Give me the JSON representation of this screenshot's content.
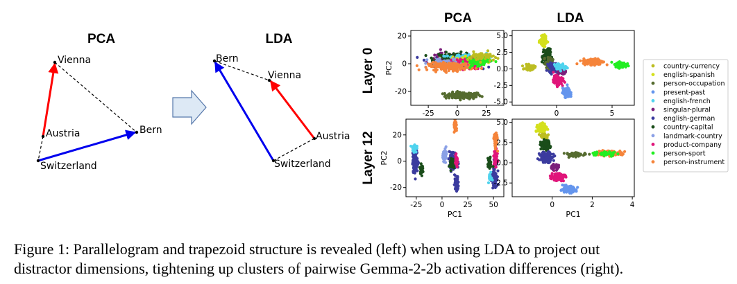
{
  "caption": {
    "line1": "Figure 1: Parallelogram and trapezoid structure is revealed (left) when using LDA to project out",
    "line2": "distractor dimensions, tightening up clusters of pairwise Gemma-2-2b activation differences (right)."
  },
  "diagrams": {
    "pca": {
      "title": "PCA",
      "nodes": [
        {
          "id": "vienna",
          "label": "Vienna"
        },
        {
          "id": "austria",
          "label": "Austria"
        },
        {
          "id": "bern",
          "label": "Bern"
        },
        {
          "id": "switzerland",
          "label": "Switzerland"
        }
      ],
      "edges": [
        {
          "from": "austria",
          "to": "vienna",
          "style": "arrow",
          "color": "#ff0000"
        },
        {
          "from": "switzerland",
          "to": "bern",
          "style": "arrow",
          "color": "#0000ee"
        },
        {
          "from": "vienna",
          "to": "bern",
          "style": "dashed",
          "color": "#000000"
        },
        {
          "from": "austria",
          "to": "switzerland",
          "style": "dashed",
          "color": "#000000"
        }
      ]
    },
    "lda": {
      "title": "LDA",
      "nodes": [
        {
          "id": "bern",
          "label": "Bern"
        },
        {
          "id": "vienna",
          "label": "Vienna"
        },
        {
          "id": "austria",
          "label": "Austria"
        },
        {
          "id": "switzerland",
          "label": "Switzerland"
        }
      ],
      "edges": [
        {
          "from": "austria",
          "to": "vienna",
          "style": "arrow",
          "color": "#ff0000"
        },
        {
          "from": "switzerland",
          "to": "bern",
          "style": "arrow",
          "color": "#0000ee"
        },
        {
          "from": "bern",
          "to": "vienna",
          "style": "dashed",
          "color": "#000000"
        },
        {
          "from": "austria",
          "to": "switzerland",
          "style": "dashed",
          "color": "#000000"
        }
      ]
    },
    "arrow_color": "#dde9f5",
    "arrow_stroke": "#5577aa"
  },
  "chart_data": {
    "type": "scatter",
    "column_titles": [
      "PCA",
      "LDA"
    ],
    "row_titles": [
      "Layer 0",
      "Layer 12"
    ],
    "legend_position": "right",
    "series": [
      {
        "name": "country-currency",
        "color": "#bcbd22"
      },
      {
        "name": "english-spanish",
        "color": "#d4e01c"
      },
      {
        "name": "person-occupation",
        "color": "#556b2f"
      },
      {
        "name": "present-past",
        "color": "#6495ed"
      },
      {
        "name": "english-french",
        "color": "#4fd3ee"
      },
      {
        "name": "singular-plural",
        "color": "#7b1f7b"
      },
      {
        "name": "english-german",
        "color": "#3b3b9e"
      },
      {
        "name": "country-capital",
        "color": "#1a4d1a"
      },
      {
        "name": "landmark-country",
        "color": "#8aa0e6"
      },
      {
        "name": "product-company",
        "color": "#e0157a"
      },
      {
        "name": "person-sport",
        "color": "#22ee22"
      },
      {
        "name": "person-instrument",
        "color": "#f5843a"
      }
    ],
    "panels": [
      {
        "id": "pca-layer0",
        "ylabel": "PC2",
        "xlabel": "",
        "xlim": [
          -40,
          40
        ],
        "ylim": [
          -30,
          24
        ],
        "xticks": [
          "-25",
          "0",
          "25"
        ],
        "xtick_values": [
          -25,
          0,
          25
        ],
        "yticks": [
          "20",
          "0",
          "-20"
        ],
        "ytick_values": [
          20,
          0,
          -20
        ],
        "clusters": [
          {
            "series": "person-occupation",
            "cx": 5,
            "cy": -23,
            "sx": 14,
            "sy": 2.2,
            "n": 140
          },
          {
            "series": "english-german",
            "cx": 0,
            "cy": 2,
            "sx": 18,
            "sy": 4,
            "n": 220
          },
          {
            "series": "singular-plural",
            "cx": -12,
            "cy": 3,
            "sx": 10,
            "sy": 4,
            "n": 80
          },
          {
            "series": "country-capital",
            "cx": -2,
            "cy": 4,
            "sx": 16,
            "sy": 3.5,
            "n": 120
          },
          {
            "series": "english-french",
            "cx": 5,
            "cy": 3,
            "sx": 18,
            "sy": 4,
            "n": 80
          },
          {
            "series": "english-spanish",
            "cx": 8,
            "cy": 2,
            "sx": 16,
            "sy": 3.5,
            "n": 80
          },
          {
            "series": "product-company",
            "cx": 8,
            "cy": 0,
            "sx": 12,
            "sy": 3.5,
            "n": 140
          },
          {
            "series": "landmark-country",
            "cx": -10,
            "cy": 0,
            "sx": 14,
            "sy": 3.5,
            "n": 60
          },
          {
            "series": "person-instrument",
            "cx": -5,
            "cy": -2,
            "sx": 18,
            "sy": 2.5,
            "n": 180
          },
          {
            "series": "person-sport",
            "cx": 18,
            "cy": 2,
            "sx": 10,
            "sy": 3,
            "n": 80
          },
          {
            "series": "country-currency",
            "cx": 20,
            "cy": 5,
            "sx": 10,
            "sy": 3,
            "n": 50
          }
        ]
      },
      {
        "id": "lda-layer0",
        "ylabel": "",
        "xlabel": "",
        "xlim": [
          -4,
          7
        ],
        "ylim": [
          -5.5,
          5.8
        ],
        "xticks": [
          "0",
          "5"
        ],
        "xtick_values": [
          0,
          5
        ],
        "yticks": [
          "5.0",
          "2.5",
          "0.0",
          "-2.5",
          "-5.0"
        ],
        "ytick_values": [
          5,
          2.5,
          0,
          -2.5,
          -5
        ],
        "clusters": [
          {
            "series": "english-spanish",
            "cx": -1.2,
            "cy": 4.2,
            "sx": 0.25,
            "sy": 0.6,
            "n": 130
          },
          {
            "series": "country-currency",
            "cx": -2.4,
            "cy": 0.2,
            "sx": 0.4,
            "sy": 0.35,
            "n": 60
          },
          {
            "series": "country-capital",
            "cx": -0.9,
            "cy": 1.9,
            "sx": 0.3,
            "sy": 1.0,
            "n": 140
          },
          {
            "series": "person-occupation",
            "cx": -0.6,
            "cy": 0.8,
            "sx": 0.35,
            "sy": 0.8,
            "n": 70
          },
          {
            "series": "person-instrument",
            "cx": 3.3,
            "cy": 1.1,
            "sx": 0.8,
            "sy": 0.4,
            "n": 160
          },
          {
            "series": "person-sport",
            "cx": 5.8,
            "cy": 0.6,
            "sx": 0.45,
            "sy": 0.35,
            "n": 110
          },
          {
            "series": "english-german",
            "cx": -0.2,
            "cy": 0.2,
            "sx": 0.45,
            "sy": 0.6,
            "n": 110
          },
          {
            "series": "singular-plural",
            "cx": 0.5,
            "cy": -0.4,
            "sx": 0.3,
            "sy": 0.4,
            "n": 60
          },
          {
            "series": "english-french",
            "cx": 0.3,
            "cy": 0.3,
            "sx": 0.5,
            "sy": 0.5,
            "n": 40
          },
          {
            "series": "product-company",
            "cx": 0.1,
            "cy": -1.7,
            "sx": 0.35,
            "sy": 0.6,
            "n": 140
          },
          {
            "series": "present-past",
            "cx": 0.9,
            "cy": -3.6,
            "sx": 0.3,
            "sy": 0.6,
            "n": 110
          }
        ]
      },
      {
        "id": "pca-layer12",
        "ylabel": "PC2",
        "xlabel": "PC1",
        "xlim": [
          -35,
          60
        ],
        "ylim": [
          -27,
          32
        ],
        "xticks": [
          "-25",
          "0",
          "25",
          "50"
        ],
        "xtick_values": [
          -25,
          0,
          25,
          50
        ],
        "yticks": [
          "20",
          "0",
          "-20"
        ],
        "ytick_values": [
          20,
          0,
          -20
        ],
        "clusters": [
          {
            "series": "english-german",
            "cx": -26,
            "cy": 0,
            "sx": 2.2,
            "sy": 8,
            "n": 180
          },
          {
            "series": "country-capital",
            "cx": -20,
            "cy": -6,
            "sx": 1.2,
            "sy": 3,
            "n": 30
          },
          {
            "series": "english-french",
            "cx": -27,
            "cy": 10,
            "sx": 2,
            "sy": 3,
            "n": 30
          },
          {
            "series": "english-german",
            "cx": 11,
            "cy": 0,
            "sx": 3.5,
            "sy": 6,
            "n": 130
          },
          {
            "series": "country-capital",
            "cx": 10,
            "cy": -2,
            "sx": 2,
            "sy": 4,
            "n": 50
          },
          {
            "series": "landmark-country",
            "cx": 3,
            "cy": 5,
            "sx": 2,
            "sy": 4,
            "n": 40
          },
          {
            "series": "person-instrument",
            "cx": 13,
            "cy": 26,
            "sx": 1.3,
            "sy": 4,
            "n": 60
          },
          {
            "series": "product-company",
            "cx": 14,
            "cy": 0,
            "sx": 1.3,
            "sy": 4,
            "n": 40
          },
          {
            "series": "english-german",
            "cx": 14,
            "cy": -17,
            "sx": 1.5,
            "sy": 5,
            "n": 60
          },
          {
            "series": "english-german",
            "cx": 51,
            "cy": -10,
            "sx": 2,
            "sy": 8,
            "n": 100
          },
          {
            "series": "product-company",
            "cx": 52,
            "cy": 2,
            "sx": 1.4,
            "sy": 5,
            "n": 90
          },
          {
            "series": "person-instrument",
            "cx": 52,
            "cy": 16,
            "sx": 1.4,
            "sy": 5,
            "n": 90
          },
          {
            "series": "country-capital",
            "cx": 46,
            "cy": -2,
            "sx": 1.5,
            "sy": 4,
            "n": 40
          },
          {
            "series": "english-french",
            "cx": 47,
            "cy": -12,
            "sx": 1.5,
            "sy": 3,
            "n": 20
          }
        ]
      },
      {
        "id": "lda-layer12",
        "ylabel": "",
        "xlabel": "PC1",
        "xlim": [
          -2,
          4.1
        ],
        "ylim": [
          -4.2,
          5.4
        ],
        "xticks": [
          "0",
          "2",
          "4"
        ],
        "xtick_values": [
          0,
          2,
          4
        ],
        "yticks": [
          "5.0",
          "2.5",
          "0.0",
          "-2.5"
        ],
        "ytick_values": [
          5,
          2.5,
          0,
          -2.5
        ],
        "clusters": [
          {
            "series": "english-spanish",
            "cx": -0.5,
            "cy": 4.2,
            "sx": 0.2,
            "sy": 0.5,
            "n": 110
          },
          {
            "series": "country-currency",
            "cx": -0.4,
            "cy": 3.3,
            "sx": 0.2,
            "sy": 0.3,
            "n": 40
          },
          {
            "series": "country-capital",
            "cx": -0.35,
            "cy": 2.2,
            "sx": 0.2,
            "sy": 0.5,
            "n": 90
          },
          {
            "series": "english-german",
            "cx": -0.3,
            "cy": 0.7,
            "sx": 0.3,
            "sy": 0.55,
            "n": 120
          },
          {
            "series": "person-occupation",
            "cx": 1.2,
            "cy": 1.0,
            "sx": 0.5,
            "sy": 0.25,
            "n": 50
          },
          {
            "series": "person-instrument",
            "cx": 2.8,
            "cy": 1.2,
            "sx": 0.6,
            "sy": 0.25,
            "n": 160
          },
          {
            "series": "person-sport",
            "cx": 2.6,
            "cy": 1.1,
            "sx": 0.6,
            "sy": 0.25,
            "n": 40
          },
          {
            "series": "product-company",
            "cx": 0.3,
            "cy": -1.7,
            "sx": 0.3,
            "sy": 0.45,
            "n": 130
          },
          {
            "series": "present-past",
            "cx": 0.8,
            "cy": -3.3,
            "sx": 0.35,
            "sy": 0.35,
            "n": 110
          },
          {
            "series": "singular-plural",
            "cx": 0.1,
            "cy": -0.5,
            "sx": 0.2,
            "sy": 0.3,
            "n": 30
          }
        ]
      }
    ]
  }
}
